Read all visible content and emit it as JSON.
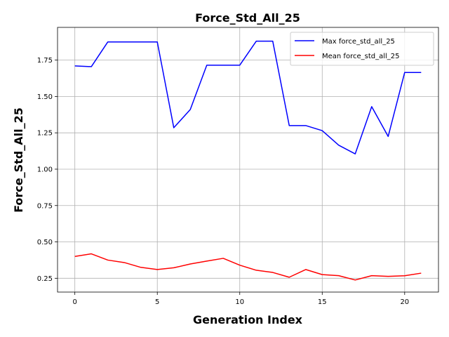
{
  "chart_data": {
    "type": "line",
    "title": "Force_Std_All_25",
    "xlabel": "Generation Index",
    "ylabel": "Force_Std_All_25",
    "xlim": [
      -1.05,
      22.05
    ],
    "ylim": [
      0.155,
      1.975
    ],
    "xticks": [
      0,
      5,
      10,
      15,
      20
    ],
    "xtick_labels": [
      "0",
      "5",
      "10",
      "15",
      "20"
    ],
    "yticks": [
      0.25,
      0.5,
      0.75,
      1.0,
      1.25,
      1.5,
      1.75
    ],
    "ytick_labels": [
      "0.25",
      "0.50",
      "0.75",
      "1.00",
      "1.25",
      "1.50",
      "1.75"
    ],
    "grid": true,
    "legend_position": "upper right",
    "x": [
      0,
      1,
      2,
      3,
      4,
      5,
      6,
      7,
      8,
      9,
      10,
      11,
      12,
      13,
      14,
      15,
      16,
      17,
      18,
      19,
      20,
      21
    ],
    "series": [
      {
        "name": "Max force_std_all_25",
        "color": "#0000ff",
        "values": [
          1.71,
          1.705,
          1.875,
          1.875,
          1.875,
          1.875,
          1.285,
          1.41,
          1.715,
          1.715,
          1.715,
          1.88,
          1.88,
          1.3,
          1.3,
          1.265,
          1.165,
          1.105,
          1.43,
          1.225,
          1.665,
          1.665
        ]
      },
      {
        "name": "Mean force_std_all_25",
        "color": "#ff0000",
        "values": [
          0.4,
          0.418,
          0.375,
          0.358,
          0.325,
          0.31,
          0.322,
          0.348,
          0.368,
          0.387,
          0.34,
          0.305,
          0.29,
          0.257,
          0.31,
          0.275,
          0.268,
          0.238,
          0.268,
          0.263,
          0.267,
          0.285
        ]
      }
    ]
  }
}
